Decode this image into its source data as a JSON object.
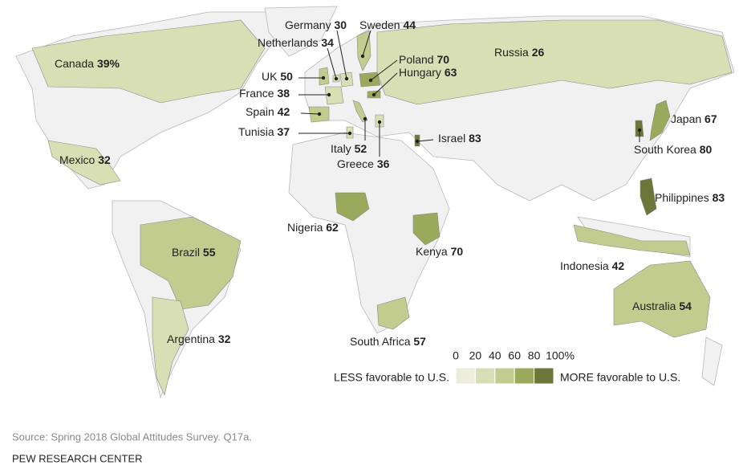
{
  "map": {
    "regions": [
      {
        "name": "Canada",
        "value": 39,
        "value_label": "39%"
      },
      {
        "name": "Germany",
        "value": 30
      },
      {
        "name": "Sweden",
        "value": 44
      },
      {
        "name": "Netherlands",
        "value": 34
      },
      {
        "name": "Poland",
        "value": 70
      },
      {
        "name": "Hungary",
        "value": 63
      },
      {
        "name": "Russia",
        "value": 26
      },
      {
        "name": "UK",
        "value": 50
      },
      {
        "name": "France",
        "value": 38
      },
      {
        "name": "Spain",
        "value": 42
      },
      {
        "name": "Tunisia",
        "value": 37
      },
      {
        "name": "Italy",
        "value": 52
      },
      {
        "name": "Greece",
        "value": 36
      },
      {
        "name": "Israel",
        "value": 83
      },
      {
        "name": "Japan",
        "value": 67
      },
      {
        "name": "South Korea",
        "value": 80
      },
      {
        "name": "Mexico",
        "value": 32
      },
      {
        "name": "Philippines",
        "value": 83
      },
      {
        "name": "Nigeria",
        "value": 62
      },
      {
        "name": "Kenya",
        "value": 70
      },
      {
        "name": "Brazil",
        "value": 55
      },
      {
        "name": "Indonesia",
        "value": 42
      },
      {
        "name": "Australia",
        "value": 54
      },
      {
        "name": "Argentina",
        "value": 32
      },
      {
        "name": "South Africa",
        "value": 57
      }
    ],
    "legend": {
      "ticks": [
        0,
        20,
        40,
        60,
        80,
        {
          "value": 100,
          "label": "100%"
        }
      ],
      "colors": [
        "#eceedb",
        "#d8dfb4",
        "#c3cc8f",
        "#9ba95c",
        "#6b7638"
      ],
      "low_label": "LESS favorable to U.S.",
      "high_label": "MORE favorable to U.S."
    }
  },
  "source": "Source: Spring 2018 Global Attitudes Survey. Q17a.",
  "footer": "PEW RESEARCH CENTER"
}
